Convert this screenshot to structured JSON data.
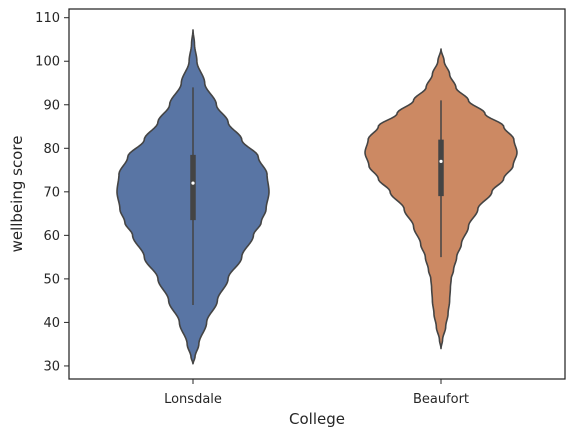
{
  "chart_data": {
    "type": "violin",
    "title": "",
    "xlabel": "College",
    "ylabel": "wellbeing score",
    "ylim": [
      27,
      112
    ],
    "yticks": [
      30,
      40,
      50,
      60,
      70,
      80,
      90,
      100,
      110
    ],
    "grid": false,
    "legend": "none",
    "categories": [
      "Lonsdale",
      "Beaufort"
    ],
    "series": [
      {
        "category": "Lonsdale",
        "color": "#5975a4",
        "range": [
          30.5,
          107.2
        ],
        "whisker": [
          44,
          94
        ],
        "q1": 63.5,
        "median": 72,
        "q3": 78.5,
        "profile": [
          [
            30.5,
            0
          ],
          [
            32,
            2
          ],
          [
            35,
            6
          ],
          [
            40,
            14
          ],
          [
            45,
            25
          ],
          [
            50,
            36
          ],
          [
            55,
            50
          ],
          [
            60,
            62
          ],
          [
            63,
            70
          ],
          [
            66,
            75
          ],
          [
            70,
            78
          ],
          [
            74,
            76
          ],
          [
            78,
            67
          ],
          [
            82,
            50
          ],
          [
            86,
            36
          ],
          [
            90,
            24
          ],
          [
            95,
            12
          ],
          [
            100,
            4
          ],
          [
            104,
            1.5
          ],
          [
            107.2,
            0
          ]
        ]
      },
      {
        "category": "Beaufort",
        "color": "#cc8963",
        "range": [
          34,
          102.8
        ],
        "whisker": [
          55,
          91
        ],
        "q1": 69,
        "median": 77,
        "q3": 82,
        "profile": [
          [
            34,
            0
          ],
          [
            36,
            2
          ],
          [
            39,
            6
          ],
          [
            42,
            9
          ],
          [
            45,
            11
          ],
          [
            48,
            12
          ],
          [
            50,
            13
          ],
          [
            52,
            16
          ],
          [
            55,
            20
          ],
          [
            58,
            26
          ],
          [
            62,
            35
          ],
          [
            66,
            47
          ],
          [
            70,
            65
          ],
          [
            73,
            80
          ],
          [
            76,
            92
          ],
          [
            79,
            97
          ],
          [
            82,
            93
          ],
          [
            85,
            80
          ],
          [
            88,
            56
          ],
          [
            91,
            35
          ],
          [
            94,
            19
          ],
          [
            97,
            11
          ],
          [
            100,
            4
          ],
          [
            102.8,
            0
          ]
        ]
      }
    ]
  }
}
